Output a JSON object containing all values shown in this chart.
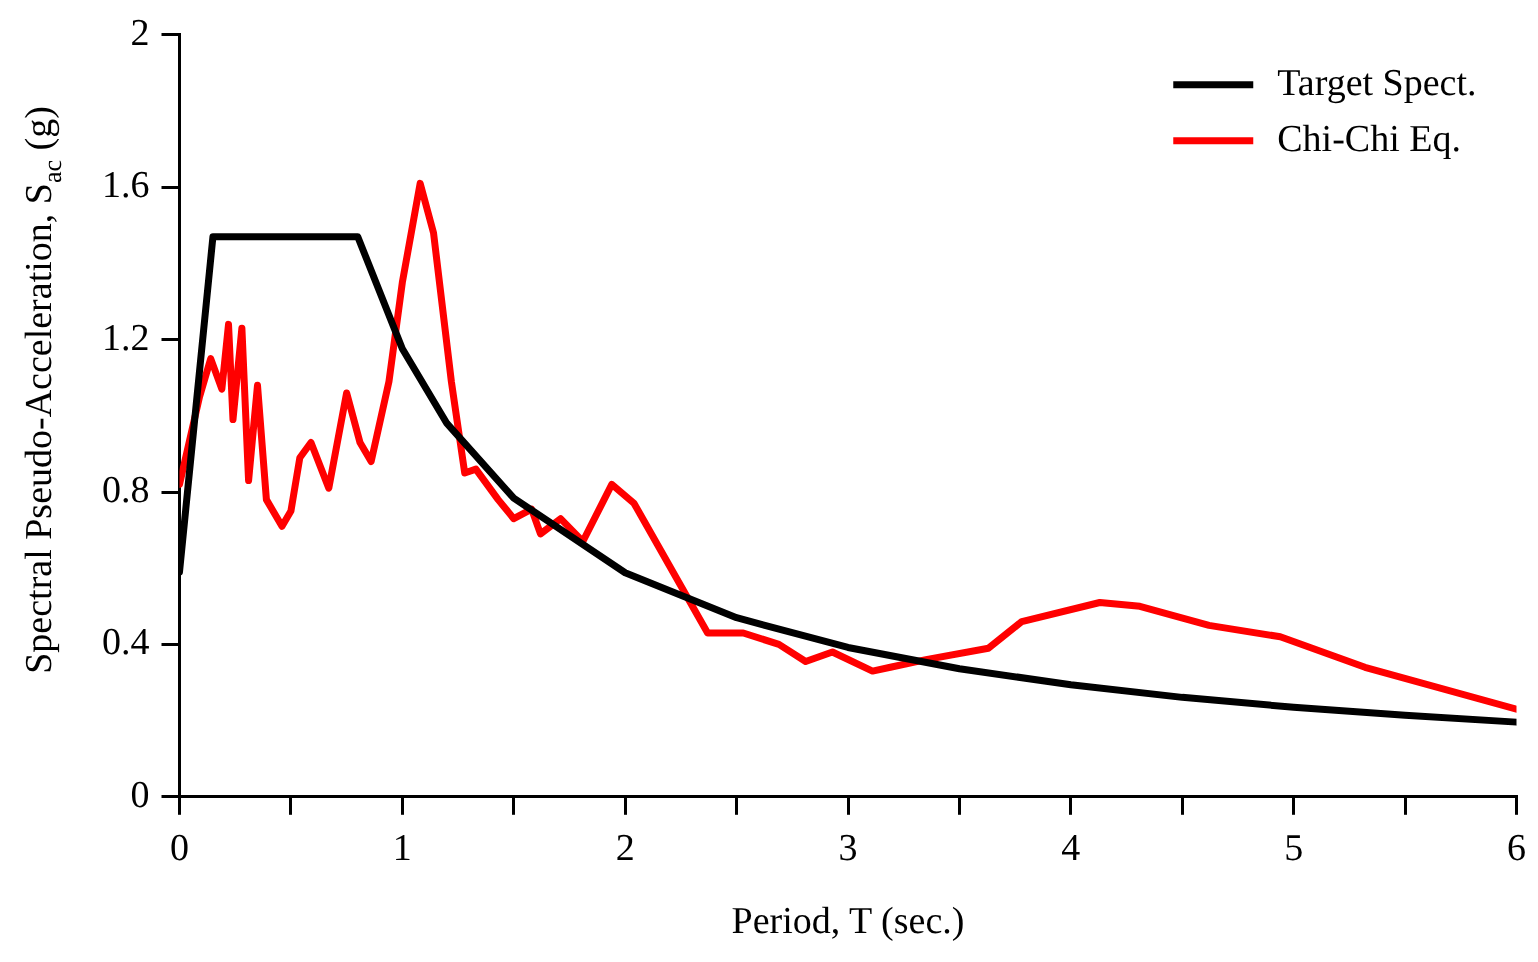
{
  "chart_data": {
    "type": "line",
    "xlabel": "Period, T (sec.)",
    "ylabel": "Spectral Pseudo-Acceleration, S$_{ac}$ (g)",
    "xlim": [
      0,
      6
    ],
    "ylim": [
      0,
      2
    ],
    "xticks": [
      0,
      {
        "value": 0.5,
        "label": null
      },
      1,
      {
        "value": 1.5,
        "label": null
      },
      2,
      {
        "value": 2.5,
        "label": null
      },
      3,
      {
        "value": 3.5,
        "label": null
      },
      4,
      {
        "value": 4.5,
        "label": null
      },
      5,
      {
        "value": 5.5,
        "label": null
      },
      6
    ],
    "yticks": [
      0,
      0.4,
      0.8,
      1.2,
      1.6,
      2
    ],
    "grid": false,
    "legend": "top right",
    "marker": "none",
    "line_style": "solid",
    "series": [
      {
        "name": "Target Spect.",
        "color": "#000000",
        "x": [
          0,
          0.15,
          0.8,
          1,
          1.2,
          1.5,
          2,
          2.5,
          3,
          3.5,
          4,
          4.5,
          5,
          5.5,
          6
        ],
        "values": [
          0.59,
          1.47,
          1.47,
          1.176,
          0.98,
          0.784,
          0.588,
          0.47,
          0.392,
          0.336,
          0.294,
          0.261,
          0.235,
          0.214,
          0.196
        ]
      },
      {
        "name": "Chi-Chi Eq.",
        "color": "#ff0000",
        "x": [
          0,
          0.09,
          0.14,
          0.19,
          0.22,
          0.24,
          0.28,
          0.31,
          0.35,
          0.39,
          0.46,
          0.5,
          0.54,
          0.59,
          0.67,
          0.75,
          0.81,
          0.86,
          0.94,
          1.0,
          1.08,
          1.14,
          1.22,
          1.28,
          1.33,
          1.43,
          1.5,
          1.58,
          1.62,
          1.71,
          1.81,
          1.94,
          2.04,
          2.37,
          2.53,
          2.69,
          2.81,
          2.93,
          3.11,
          3.19,
          3.35,
          3.63,
          3.78,
          4.13,
          4.31,
          4.62,
          4.94,
          5.32,
          6.0
        ],
        "values": [
          0.82,
          1.05,
          1.15,
          1.07,
          1.24,
          0.99,
          1.23,
          0.83,
          1.08,
          0.78,
          0.71,
          0.75,
          0.89,
          0.93,
          0.81,
          1.06,
          0.93,
          0.88,
          1.09,
          1.35,
          1.61,
          1.48,
          1.09,
          0.85,
          0.86,
          0.78,
          0.73,
          0.755,
          0.69,
          0.73,
          0.67,
          0.82,
          0.77,
          0.43,
          0.43,
          0.4,
          0.355,
          0.38,
          0.33,
          0.34,
          0.36,
          0.39,
          0.46,
          0.51,
          0.5,
          0.45,
          0.42,
          0.34,
          0.23
        ]
      }
    ]
  }
}
